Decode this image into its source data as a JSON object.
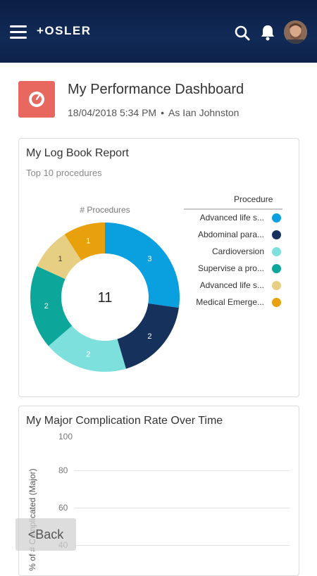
{
  "header": {
    "logo_text": "+OSLER",
    "icons": {
      "menu": "hamburger-menu-icon",
      "search": "search-icon",
      "notifications": "bell-icon",
      "profile": "avatar"
    }
  },
  "dashboard": {
    "title": "My Performance Dashboard",
    "datetime": "18/04/2018 5:34 PM",
    "separator": "•",
    "as_user": "As Ian Johnston",
    "icon": "gauge-icon",
    "icon_color": "#e8675e"
  },
  "logbook_card": {
    "title": "My Log Book Report",
    "subtitle": "Top 10 procedures",
    "legend_title": "Procedure"
  },
  "complication_card": {
    "title": "My Major Complication Rate Over Time"
  },
  "back_button": {
    "label": "<Back"
  },
  "chart_data": [
    {
      "type": "pie",
      "style": "donut",
      "title": "# Procedures",
      "center_total": "11",
      "legend_title": "Procedure",
      "legend_position": "right",
      "slices": [
        {
          "label": "Advanced life s...",
          "value": 3,
          "color": "#0aa0e0"
        },
        {
          "label": "Abdominal para...",
          "value": 2,
          "color": "#16325c"
        },
        {
          "label": "Cardioversion",
          "value": 2,
          "color": "#7ee0dd"
        },
        {
          "label": "Supervise a pro...",
          "value": 2,
          "color": "#0da69a"
        },
        {
          "label": "Advanced life s...",
          "value": 1,
          "color": "#e6cf82"
        },
        {
          "label": "Medical Emerge...",
          "value": 1,
          "color": "#e8a10c"
        }
      ]
    },
    {
      "type": "line",
      "title": "My Major Complication Rate Over Time",
      "ylabel": "% of # Complicated (Major)",
      "yticks": [
        100,
        80,
        60,
        40
      ],
      "grid": true,
      "series": []
    }
  ]
}
